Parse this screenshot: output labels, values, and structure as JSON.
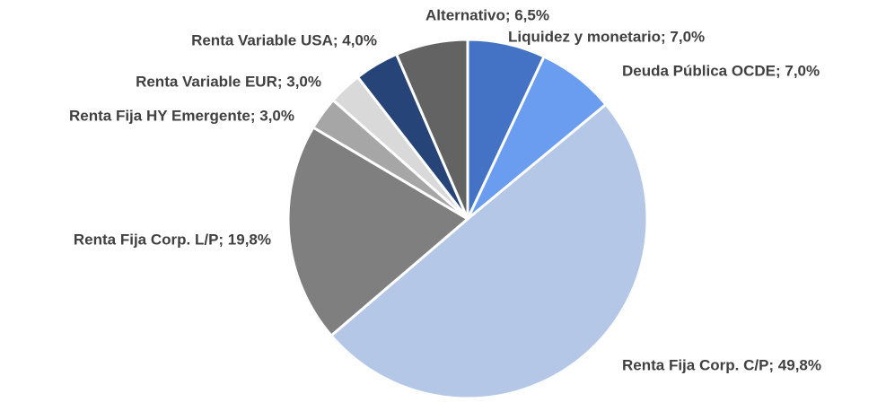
{
  "chart_data": {
    "type": "pie",
    "value_labels": [
      "Liquidez y monetario; 7,0%",
      "Deuda Pública OCDE; 7,0%",
      "Renta Fija Corp. C/P; 49,8%",
      "Renta Fija Corp. L/P; 19,8%",
      "Renta Fija HY Emergente; 3,0%",
      "Renta Variable EUR; 3,0%",
      "Renta Variable USA; 4,0%",
      "Alternativo; 6,5%"
    ],
    "values": [
      7.0,
      7.0,
      49.8,
      19.8,
      3.0,
      3.0,
      4.0,
      6.5
    ],
    "colors": [
      "#4472c4",
      "#6a9cf0",
      "#b4c7e7",
      "#7f7f7f",
      "#a6a6a6",
      "#d9d9d9",
      "#264478",
      "#636363"
    ]
  }
}
